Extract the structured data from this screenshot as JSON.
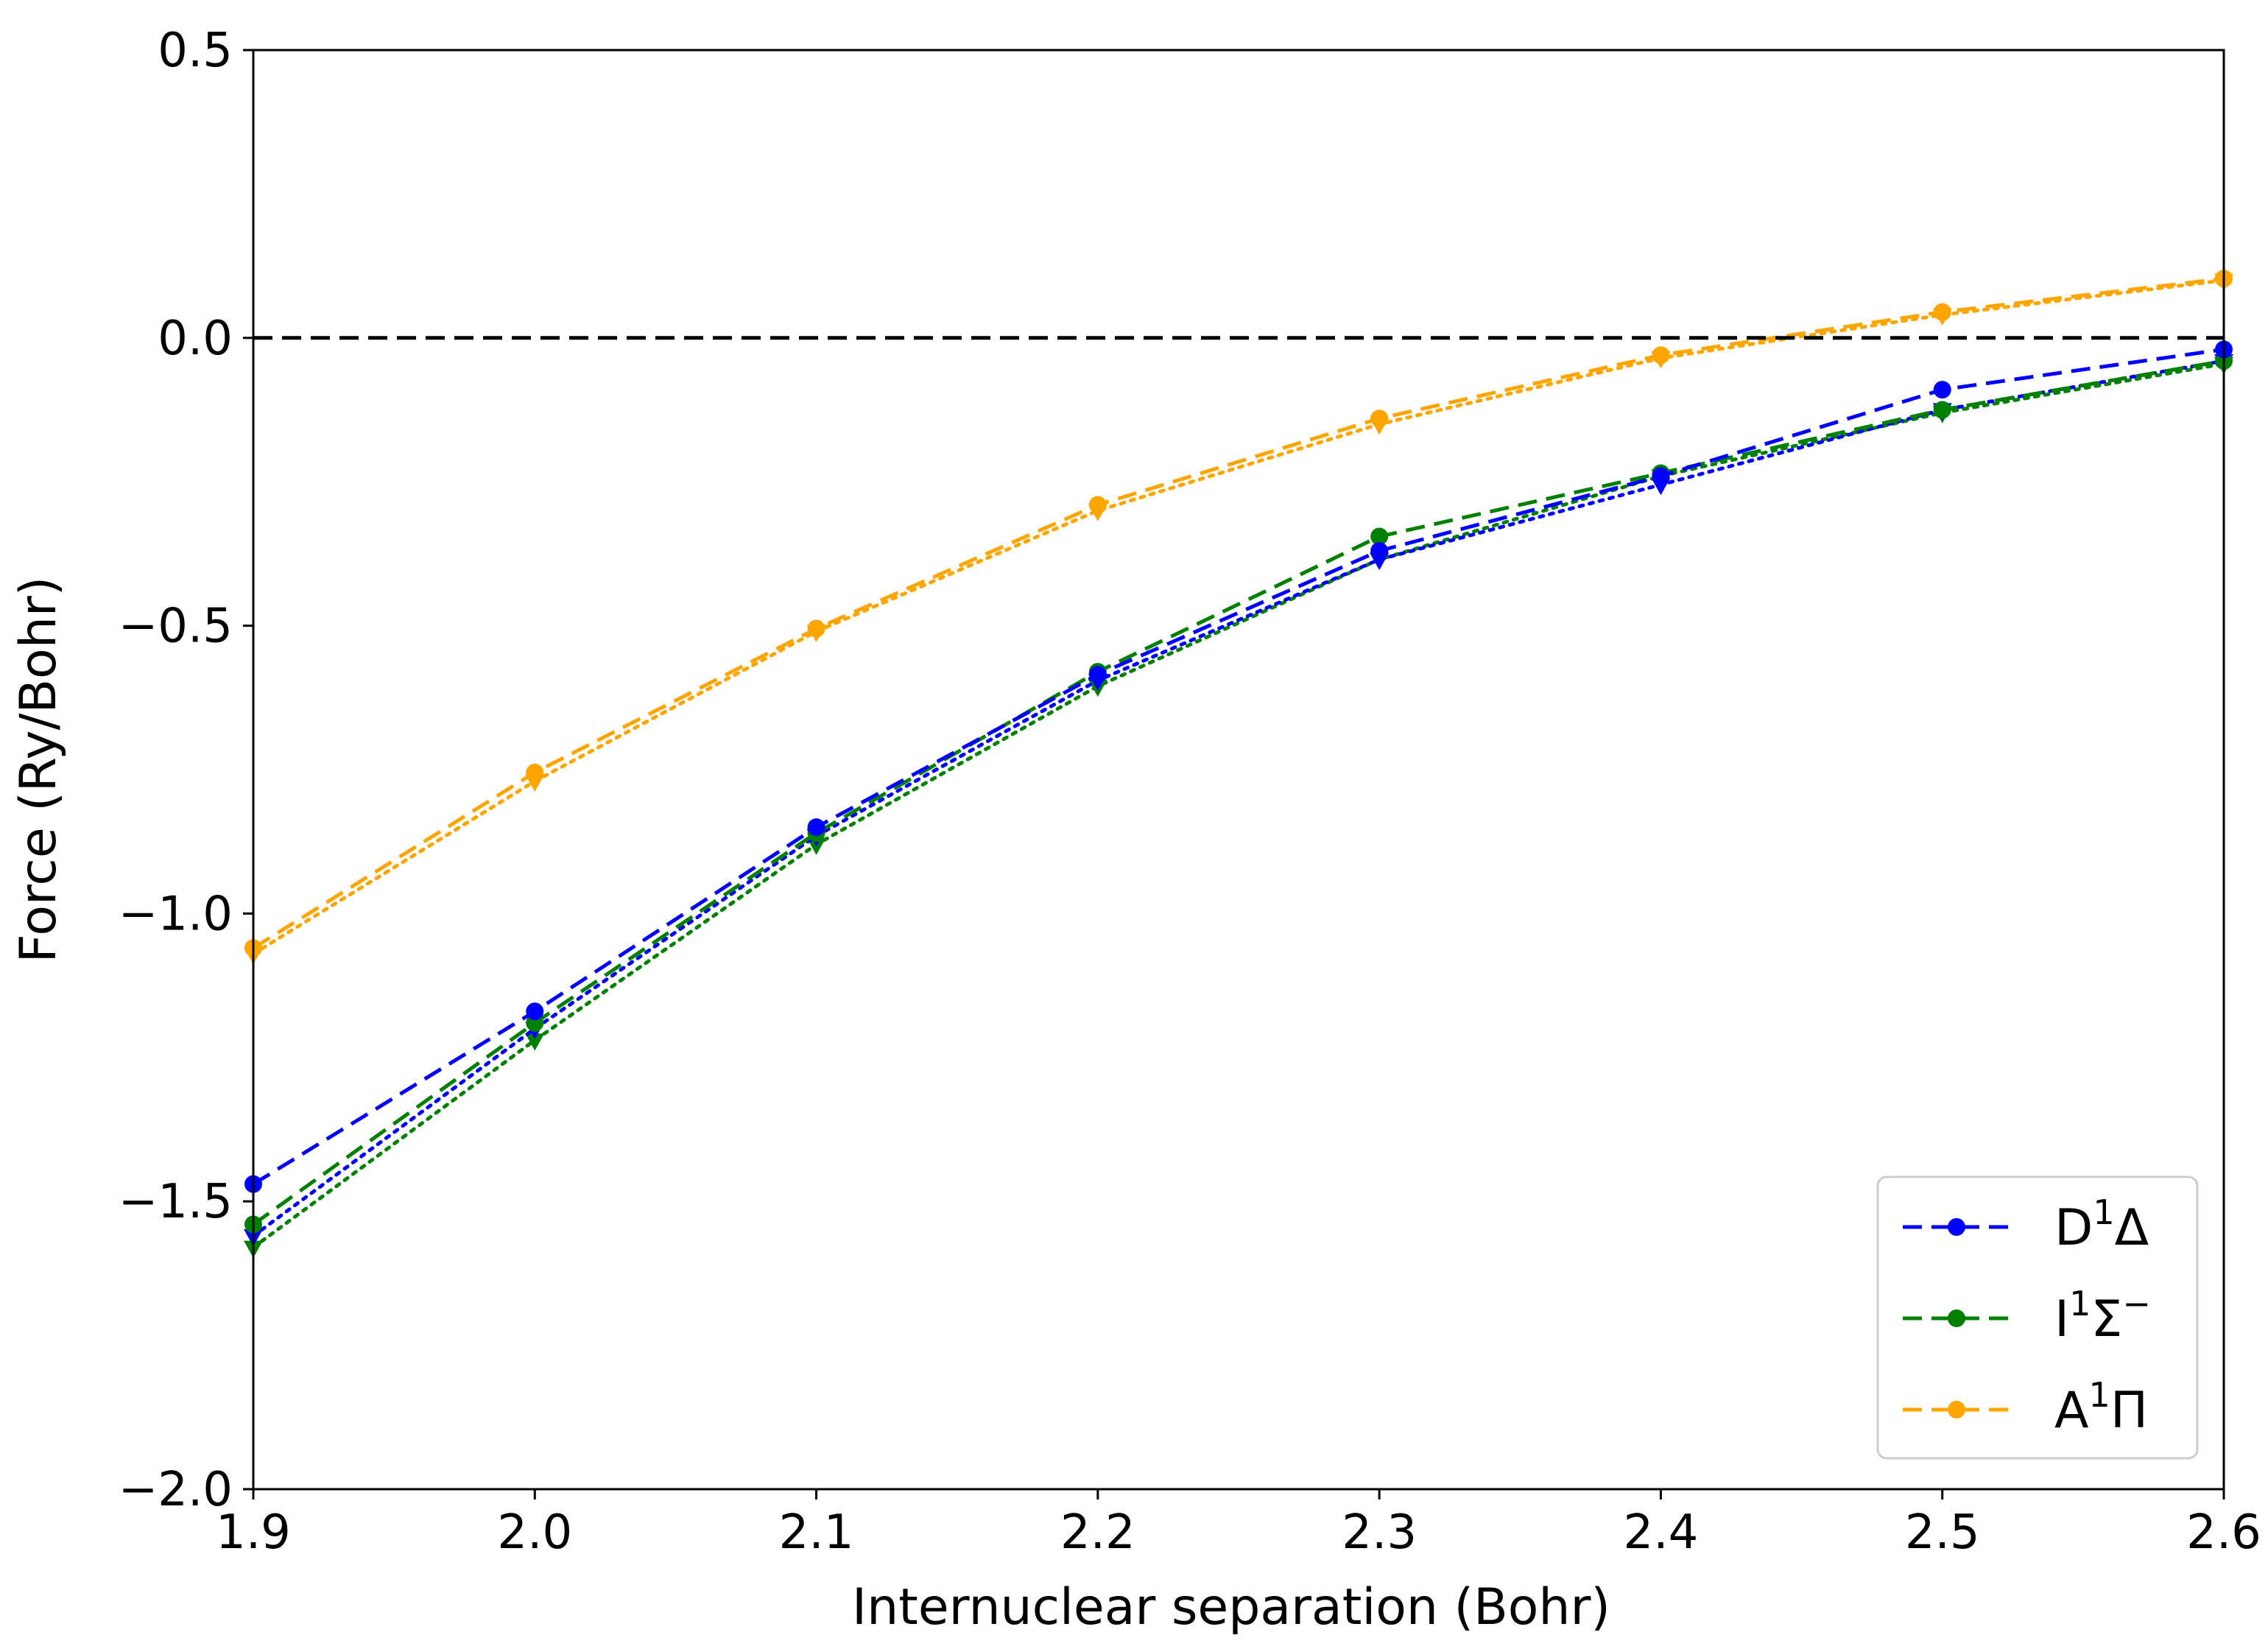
{
  "chart_data": {
    "type": "line",
    "xlabel": "Internuclear separation (Bohr)",
    "ylabel": "Force (Ry/Bohr)",
    "xlim": [
      1.9,
      2.6
    ],
    "ylim": [
      -2.0,
      0.5
    ],
    "x_ticks": [
      "1.9",
      "2.0",
      "2.1",
      "2.2",
      "2.3",
      "2.4",
      "2.5",
      "2.6"
    ],
    "y_ticks": [
      "0.5",
      "0.0",
      "−0.5",
      "−1.0",
      "−1.5",
      "−2.0"
    ],
    "x_tick_values": [
      1.9,
      2.0,
      2.1,
      2.2,
      2.3,
      2.4,
      2.5,
      2.6
    ],
    "y_tick_values": [
      0.5,
      0.0,
      -0.5,
      -1.0,
      -1.5,
      -2.0
    ],
    "reference_line": {
      "y": 0.0,
      "color": "#000000",
      "style": "dashed"
    },
    "legend_position": "lower-right",
    "grid": false,
    "x": [
      1.9,
      2.0,
      2.1,
      2.2,
      2.3,
      2.4,
      2.5,
      2.6
    ],
    "series": [
      {
        "label_main": "D",
        "label_sup": "1",
        "label_tail": "Δ",
        "color": "#0000ff",
        "style": "dashed",
        "marker": "circle",
        "values": [
          -1.47,
          -1.17,
          -0.85,
          -0.585,
          -0.37,
          -0.24,
          -0.09,
          -0.02
        ]
      },
      {
        "label_main": "I",
        "label_sup": "1",
        "label_tail": "Σ",
        "label_sup2": "−",
        "color": "#008000",
        "style": "dashed",
        "marker": "circle",
        "values": [
          -1.54,
          -1.19,
          -0.86,
          -0.58,
          -0.345,
          -0.235,
          -0.125,
          -0.04
        ]
      },
      {
        "label_main": "A",
        "label_sup": "1",
        "label_tail": "Π",
        "color": "#ffa500",
        "style": "dashed",
        "marker": "circle",
        "values": [
          -1.06,
          -0.755,
          -0.505,
          -0.29,
          -0.14,
          -0.03,
          0.045,
          0.103
        ]
      },
      {
        "color": "#0000ff",
        "style": "dotted",
        "marker": "triangle",
        "values": [
          -1.56,
          -1.2,
          -0.865,
          -0.595,
          -0.385,
          -0.255,
          -0.125,
          -0.04
        ]
      },
      {
        "color": "#008000",
        "style": "dotted",
        "marker": "triangle",
        "values": [
          -1.58,
          -1.22,
          -0.88,
          -0.605,
          -0.385,
          -0.24,
          -0.13,
          -0.045
        ]
      },
      {
        "color": "#ffa500",
        "style": "dotted",
        "marker": "triangle",
        "values": [
          -1.07,
          -0.77,
          -0.51,
          -0.3,
          -0.15,
          -0.035,
          0.04,
          0.1
        ]
      }
    ]
  }
}
